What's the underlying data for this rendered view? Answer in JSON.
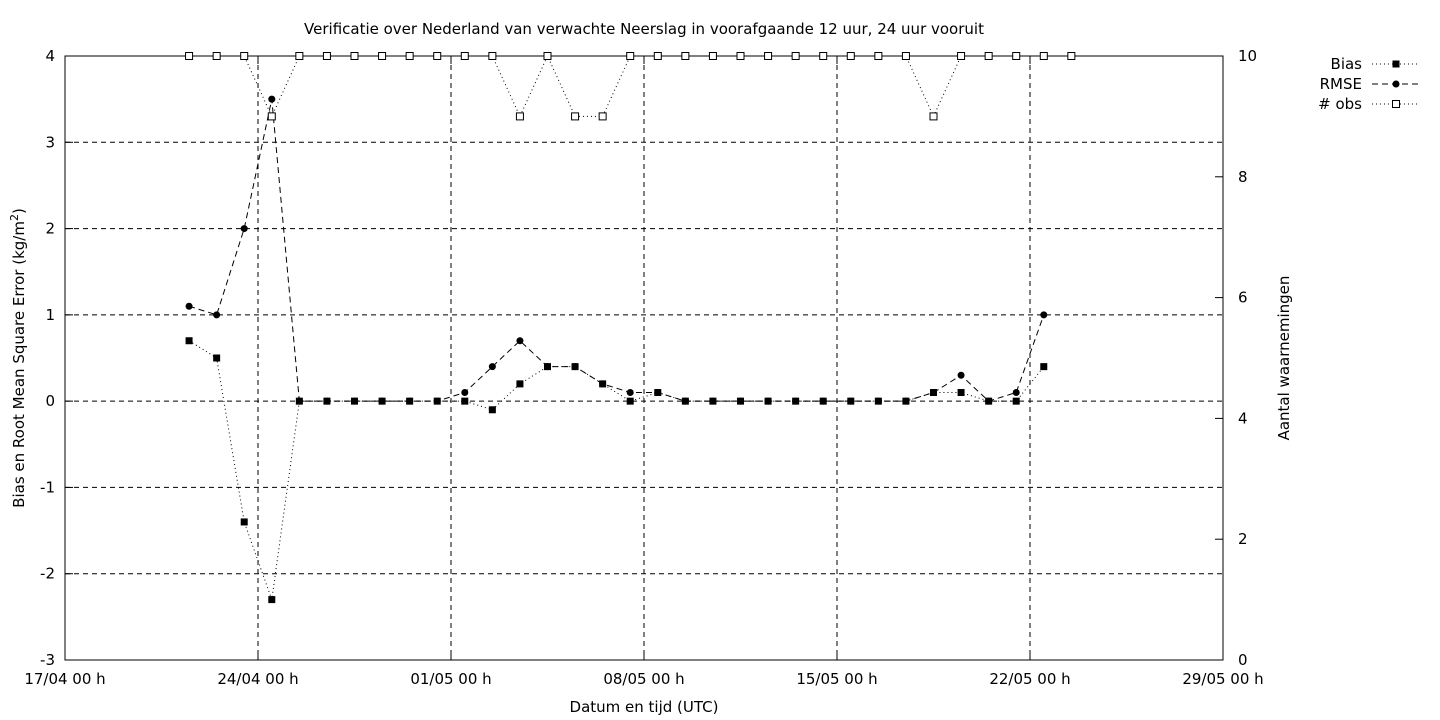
{
  "chart_data": {
    "type": "line",
    "title": "Verificatie over Nederland van verwachte Neerslag in voorafgaande 12 uur, 24 uur vooruit",
    "xlabel": "Datum en tijd (UTC)",
    "ylabel": "Bias en Root Mean Square Error (kg/m",
    "ylabel_sup": "2",
    "ylabel_end": ")",
    "y2label": "Aantal waarnemingen",
    "xlim_days": [
      0,
      42
    ],
    "ylim": [
      -3,
      4
    ],
    "y2lim": [
      0,
      10
    ],
    "x_ticks": [
      {
        "day": 0,
        "label": "17/04 00 h"
      },
      {
        "day": 7,
        "label": "24/04 00 h"
      },
      {
        "day": 14,
        "label": "01/05 00 h"
      },
      {
        "day": 21,
        "label": "08/05 00 h"
      },
      {
        "day": 28,
        "label": "15/05 00 h"
      },
      {
        "day": 35,
        "label": "22/05 00 h"
      },
      {
        "day": 42,
        "label": "29/05 00 h"
      }
    ],
    "y_ticks": [
      {
        "value": -3,
        "label": "-3"
      },
      {
        "value": -2,
        "label": "-2"
      },
      {
        "value": -1,
        "label": "-1"
      },
      {
        "value": 0,
        "label": "0"
      },
      {
        "value": 1,
        "label": "1"
      },
      {
        "value": 2,
        "label": "2"
      },
      {
        "value": 3,
        "label": "3"
      },
      {
        "value": 4,
        "label": "4"
      }
    ],
    "y2_ticks": [
      {
        "value": 0,
        "label": "0"
      },
      {
        "value": 2,
        "label": "2"
      },
      {
        "value": 4,
        "label": "4"
      },
      {
        "value": 6,
        "label": "6"
      },
      {
        "value": 8,
        "label": "8"
      },
      {
        "value": 10,
        "label": "10"
      }
    ],
    "grid": true,
    "legend_position": "outside-top-right",
    "series": [
      {
        "name": "Bias",
        "axis": "left",
        "marker": "filled-square",
        "line": "dotted",
        "points": [
          [
            4.5,
            0.7
          ],
          [
            5.5,
            0.5
          ],
          [
            6.5,
            -1.4
          ],
          [
            7.5,
            -2.3
          ],
          [
            8.5,
            0
          ],
          [
            9.5,
            0
          ],
          [
            10.5,
            0
          ],
          [
            11.5,
            0
          ],
          [
            12.5,
            0
          ],
          [
            13.5,
            0
          ],
          [
            14.5,
            0
          ],
          [
            15.5,
            -0.1
          ],
          [
            16.5,
            0.2
          ],
          [
            17.5,
            0.4
          ],
          [
            18.5,
            0.4
          ],
          [
            19.5,
            0.2
          ],
          [
            20.5,
            0
          ],
          [
            21.5,
            0.1
          ],
          [
            22.5,
            0
          ],
          [
            23.5,
            0
          ],
          [
            24.5,
            0
          ],
          [
            25.5,
            0
          ],
          [
            26.5,
            0
          ],
          [
            27.5,
            0
          ],
          [
            28.5,
            0
          ],
          [
            29.5,
            0
          ],
          [
            30.5,
            0
          ],
          [
            31.5,
            0.1
          ],
          [
            32.5,
            0.1
          ],
          [
            33.5,
            0
          ],
          [
            34.5,
            0
          ],
          [
            35.5,
            0.4
          ]
        ]
      },
      {
        "name": "RMSE",
        "axis": "left",
        "marker": "filled-circle",
        "line": "dashed",
        "points": [
          [
            4.5,
            1.1
          ],
          [
            5.5,
            1.0
          ],
          [
            6.5,
            2.0
          ],
          [
            7.5,
            3.5
          ],
          [
            8.5,
            0
          ],
          [
            9.5,
            0
          ],
          [
            10.5,
            0
          ],
          [
            11.5,
            0
          ],
          [
            12.5,
            0
          ],
          [
            13.5,
            0
          ],
          [
            14.5,
            0.1
          ],
          [
            15.5,
            0.4
          ],
          [
            16.5,
            0.7
          ],
          [
            17.5,
            0.4
          ],
          [
            18.5,
            0.4
          ],
          [
            19.5,
            0.2
          ],
          [
            20.5,
            0.1
          ],
          [
            21.5,
            0.1
          ],
          [
            22.5,
            0
          ],
          [
            23.5,
            0
          ],
          [
            24.5,
            0
          ],
          [
            25.5,
            0
          ],
          [
            26.5,
            0
          ],
          [
            27.5,
            0
          ],
          [
            28.5,
            0
          ],
          [
            29.5,
            0
          ],
          [
            30.5,
            0
          ],
          [
            31.5,
            0.1
          ],
          [
            32.5,
            0.3
          ],
          [
            33.5,
            0
          ],
          [
            34.5,
            0.1
          ],
          [
            35.5,
            1.0
          ]
        ]
      },
      {
        "name": "# obs",
        "axis": "right",
        "marker": "open-square",
        "line": "dotted",
        "points": [
          [
            4.5,
            10
          ],
          [
            5.5,
            10
          ],
          [
            6.5,
            10
          ],
          [
            7.5,
            9
          ],
          [
            8.5,
            10
          ],
          [
            9.5,
            10
          ],
          [
            10.5,
            10
          ],
          [
            11.5,
            10
          ],
          [
            12.5,
            10
          ],
          [
            13.5,
            10
          ],
          [
            14.5,
            10
          ],
          [
            15.5,
            10
          ],
          [
            16.5,
            9
          ],
          [
            17.5,
            10
          ],
          [
            18.5,
            9
          ],
          [
            19.5,
            9
          ],
          [
            20.5,
            10
          ],
          [
            21.5,
            10
          ],
          [
            22.5,
            10
          ],
          [
            23.5,
            10
          ],
          [
            24.5,
            10
          ],
          [
            25.5,
            10
          ],
          [
            26.5,
            10
          ],
          [
            27.5,
            10
          ],
          [
            28.5,
            10
          ],
          [
            29.5,
            10
          ],
          [
            30.5,
            10
          ],
          [
            31.5,
            9
          ],
          [
            32.5,
            10
          ],
          [
            33.5,
            10
          ],
          [
            34.5,
            10
          ],
          [
            35.5,
            10
          ],
          [
            36.5,
            10
          ]
        ]
      }
    ]
  }
}
